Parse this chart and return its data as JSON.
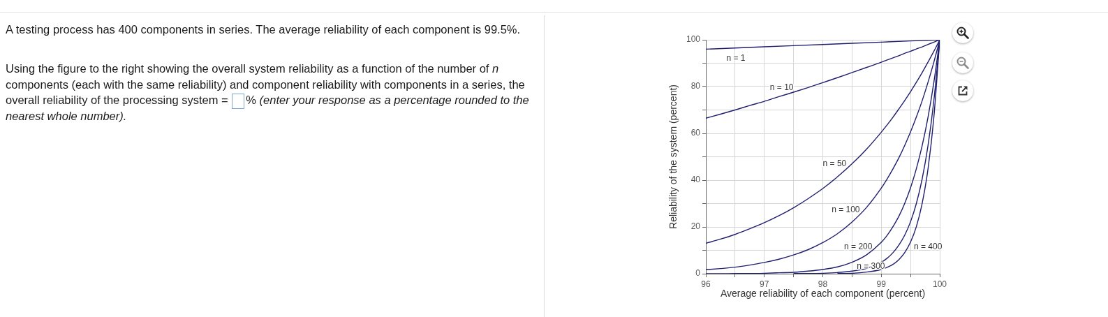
{
  "chart_data": {
    "type": "line",
    "xlabel": "Average reliability of each component (percent)",
    "ylabel": "Reliability of the system (percent)",
    "x": [
      96,
      96.25,
      96.5,
      96.75,
      97,
      97.25,
      97.5,
      97.75,
      98,
      98.25,
      98.5,
      98.75,
      99,
      99.1,
      99.2,
      99.3,
      99.4,
      99.5,
      99.6,
      99.7,
      99.8,
      99.9,
      100
    ],
    "series": [
      {
        "name": "n = 1",
        "color": "#1e1e6e",
        "x": [
          96,
          97,
          98,
          99,
          100
        ],
        "values": [
          96,
          97,
          98,
          99,
          100
        ]
      },
      {
        "name": "n = 10",
        "color": "#1e1e6e",
        "values": [
          66.5,
          68.2,
          70.0,
          71.9,
          73.7,
          75.7,
          77.6,
          79.6,
          81.7,
          83.8,
          86.0,
          88.2,
          90.4,
          91.4,
          92.3,
          93.2,
          94.2,
          95.1,
          96.1,
          97.0,
          98.0,
          99.0,
          100
        ]
      },
      {
        "name": "n = 50",
        "color": "#1e1e6e",
        "values": [
          13.0,
          14.8,
          16.8,
          19.2,
          21.8,
          24.8,
          28.2,
          32.1,
          36.4,
          41.4,
          47.0,
          53.3,
          60.5,
          63.6,
          66.9,
          70.4,
          74.0,
          77.8,
          81.8,
          86.0,
          90.5,
          95.1,
          100
        ]
      },
      {
        "name": "n = 100",
        "color": "#1e1e6e",
        "values": [
          1.7,
          2.2,
          2.8,
          3.7,
          4.8,
          6.2,
          8.0,
          10.3,
          13.3,
          17.1,
          22.1,
          28.4,
          36.6,
          40.5,
          44.8,
          49.5,
          54.8,
          60.6,
          67.0,
          74.0,
          81.9,
          90.5,
          100
        ]
      },
      {
        "name": "n = 200",
        "color": "#1e1e6e",
        "values": [
          0,
          0,
          0.1,
          0.1,
          0.2,
          0.4,
          0.6,
          1.1,
          1.8,
          2.9,
          4.9,
          8.1,
          13.4,
          16.4,
          20.1,
          24.5,
          30.0,
          36.7,
          44.9,
          54.8,
          67.0,
          81.9,
          100
        ]
      },
      {
        "name": "n = 300",
        "color": "#1e1e6e",
        "x": [
          97.5,
          97.75,
          98,
          98.25,
          98.5,
          98.75,
          99,
          99.1,
          99.2,
          99.3,
          99.4,
          99.5,
          99.6,
          99.7,
          99.8,
          99.9,
          100
        ],
        "values": [
          0.1,
          0.1,
          0.2,
          0.5,
          1.1,
          2.3,
          4.9,
          6.6,
          9.0,
          12.2,
          16.4,
          22.2,
          30.0,
          40.6,
          54.9,
          74.1,
          100
        ]
      },
      {
        "name": "n = 400",
        "color": "#1e1e6e",
        "x": [
          98.25,
          98.5,
          98.75,
          99,
          99.1,
          99.2,
          99.3,
          99.4,
          99.5,
          99.6,
          99.7,
          99.8,
          99.9,
          100
        ],
        "values": [
          0.1,
          0.2,
          0.7,
          1.8,
          2.7,
          4.0,
          6.0,
          9.0,
          13.5,
          20.1,
          30.1,
          44.9,
          67.0,
          100
        ]
      }
    ],
    "xlim": [
      96,
      100
    ],
    "xticks": [
      96,
      {
        "value": 96.5,
        "label": null
      },
      97,
      {
        "value": 97.5,
        "label": null
      },
      98,
      {
        "value": 98.5,
        "label": null
      },
      99,
      {
        "value": 99.5,
        "label": null
      },
      100
    ],
    "ylim": [
      0,
      100
    ],
    "yticks": [
      0,
      {
        "value": 10,
        "label": null
      },
      20,
      {
        "value": 30,
        "label": null
      },
      40,
      {
        "value": 50,
        "label": null
      },
      60,
      {
        "value": 70,
        "label": null
      },
      80,
      {
        "value": 90,
        "label": null
      },
      100
    ],
    "grid": true,
    "marker": "none",
    "annotations": [
      "A testing process has 400 components in series. The average reliability of each component is 99.5%.",
      "Using the figure to the right showing the overall system reliability as a function of the number of",
      "n",
      "components (each with the same reliability) and component reliability with components in a series, the",
      "overall reliability of the processing system =",
      "%",
      "(enter your response as a percentage rounded to the",
      "nearest whole number)."
    ]
  }
}
